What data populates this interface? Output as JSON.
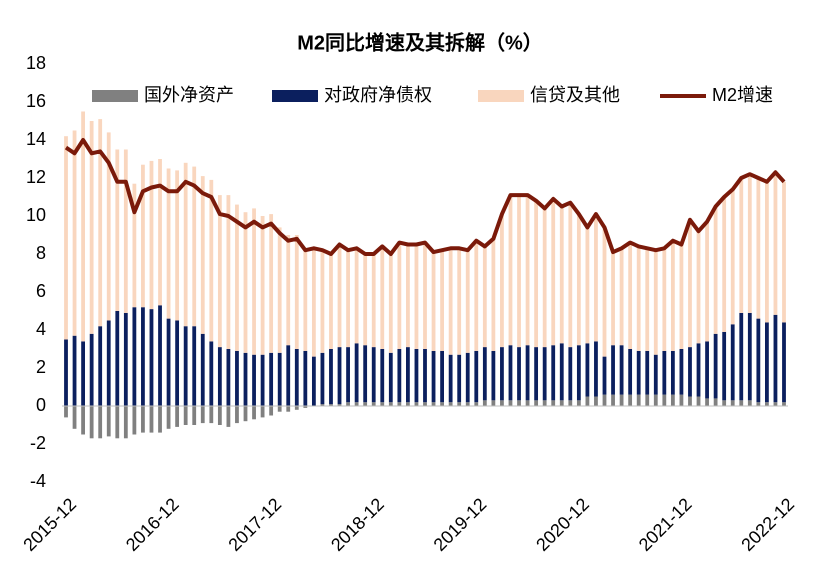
{
  "chart_data": {
    "type": "bar",
    "title": "M2同比增速及其拆解（%）",
    "categories": [
      "2015-12",
      null,
      null,
      null,
      null,
      null,
      null,
      null,
      null,
      null,
      null,
      null,
      "2016-12",
      null,
      null,
      null,
      null,
      null,
      null,
      null,
      null,
      null,
      null,
      null,
      "2017-12",
      null,
      null,
      null,
      null,
      null,
      null,
      null,
      null,
      null,
      null,
      null,
      "2018-12",
      null,
      null,
      null,
      null,
      null,
      null,
      null,
      null,
      null,
      null,
      null,
      "2019-12",
      null,
      null,
      null,
      null,
      null,
      null,
      null,
      null,
      null,
      null,
      null,
      "2020-12",
      null,
      null,
      null,
      null,
      null,
      null,
      null,
      null,
      null,
      null,
      null,
      "2021-12",
      null,
      null,
      null,
      null,
      null,
      null,
      null,
      null,
      null,
      null,
      null,
      "2022-12"
    ],
    "series": [
      {
        "name": "国外净资产",
        "color": "#808080",
        "values": [
          -0.6,
          -1.2,
          -1.5,
          -1.7,
          -1.7,
          -1.6,
          -1.7,
          -1.7,
          -1.5,
          -1.4,
          -1.4,
          -1.4,
          -1.2,
          -1.1,
          -1.0,
          -1.0,
          -0.9,
          -0.9,
          -1.0,
          -1.1,
          -0.9,
          -0.8,
          -0.7,
          -0.6,
          -0.5,
          -0.3,
          -0.3,
          -0.2,
          -0.1,
          0.0,
          0.1,
          0.1,
          0.1,
          0.2,
          0.2,
          0.2,
          0.2,
          0.2,
          0.2,
          0.2,
          0.2,
          0.2,
          0.2,
          0.2,
          0.2,
          0.2,
          0.2,
          0.2,
          0.2,
          0.3,
          0.3,
          0.3,
          0.3,
          0.3,
          0.3,
          0.3,
          0.3,
          0.3,
          0.3,
          0.3,
          0.3,
          0.5,
          0.5,
          0.6,
          0.6,
          0.6,
          0.6,
          0.6,
          0.6,
          0.6,
          0.6,
          0.6,
          0.6,
          0.5,
          0.5,
          0.4,
          0.4,
          0.3,
          0.3,
          0.3,
          0.3,
          0.2,
          0.2,
          0.2,
          0.2
        ]
      },
      {
        "name": "对政府净债权",
        "color": "#0b1f5e",
        "values": [
          3.5,
          3.7,
          3.4,
          3.8,
          4.2,
          4.5,
          5.0,
          4.9,
          5.2,
          5.2,
          5.1,
          5.3,
          4.6,
          4.5,
          4.2,
          4.2,
          3.8,
          3.4,
          3.1,
          3.0,
          2.9,
          2.8,
          2.7,
          2.7,
          2.8,
          2.8,
          3.2,
          3.0,
          2.9,
          2.6,
          2.7,
          2.9,
          3.0,
          2.9,
          3.1,
          3.0,
          2.9,
          2.8,
          2.6,
          2.8,
          2.9,
          2.8,
          2.8,
          2.7,
          2.7,
          2.5,
          2.5,
          2.6,
          2.7,
          2.8,
          2.6,
          2.8,
          2.9,
          2.8,
          2.9,
          2.8,
          2.8,
          2.9,
          3.0,
          2.8,
          2.9,
          2.8,
          2.9,
          2.0,
          2.6,
          2.6,
          2.4,
          2.3,
          2.3,
          2.1,
          2.3,
          2.3,
          2.4,
          2.6,
          2.8,
          3.0,
          3.4,
          3.6,
          4.0,
          4.6,
          4.6,
          4.4,
          4.2,
          4.6,
          4.2
        ]
      },
      {
        "name": "信贷及其他",
        "color": "#f9d6be",
        "values": [
          10.7,
          10.8,
          12.1,
          11.2,
          10.9,
          9.9,
          8.5,
          8.6,
          6.5,
          7.5,
          7.8,
          7.7,
          7.9,
          7.9,
          8.6,
          8.4,
          8.3,
          8.5,
          8.0,
          8.1,
          7.7,
          7.4,
          7.7,
          7.3,
          7.3,
          6.6,
          5.8,
          6.0,
          5.4,
          5.7,
          5.4,
          5.0,
          5.4,
          5.1,
          5.0,
          4.8,
          4.9,
          5.4,
          5.2,
          5.6,
          5.4,
          5.5,
          5.6,
          5.2,
          5.3,
          5.6,
          5.6,
          5.4,
          5.8,
          5.3,
          5.9,
          7.0,
          7.9,
          8.0,
          7.9,
          7.7,
          7.3,
          7.7,
          7.2,
          7.6,
          6.9,
          6.1,
          6.7,
          6.8,
          4.9,
          5.1,
          5.6,
          5.5,
          5.4,
          5.5,
          5.4,
          5.8,
          5.5,
          6.7,
          5.9,
          6.3,
          6.7,
          7.1,
          7.1,
          7.1,
          7.3,
          7.4,
          7.4,
          7.5,
          7.4
        ]
      },
      {
        "name": "M2增速",
        "color": "#7b1a0a",
        "type": "line",
        "values": [
          13.6,
          13.3,
          14.0,
          13.3,
          13.4,
          12.8,
          11.8,
          11.8,
          10.2,
          11.3,
          11.5,
          11.6,
          11.3,
          11.3,
          11.8,
          11.6,
          11.2,
          11.0,
          10.1,
          10.0,
          9.7,
          9.4,
          9.7,
          9.4,
          9.6,
          9.1,
          8.7,
          8.8,
          8.2,
          8.3,
          8.2,
          8.0,
          8.5,
          8.2,
          8.3,
          8.0,
          8.0,
          8.4,
          8.0,
          8.6,
          8.5,
          8.5,
          8.6,
          8.1,
          8.2,
          8.3,
          8.3,
          8.2,
          8.7,
          8.4,
          8.8,
          10.1,
          11.1,
          11.1,
          11.1,
          10.8,
          10.4,
          10.9,
          10.5,
          10.7,
          10.1,
          9.4,
          10.1,
          9.4,
          8.1,
          8.3,
          8.6,
          8.4,
          8.3,
          8.2,
          8.3,
          8.7,
          8.5,
          9.8,
          9.2,
          9.7,
          10.5,
          11.0,
          11.4,
          12.0,
          12.2,
          12.0,
          11.8,
          12.3,
          11.8
        ]
      }
    ],
    "ylim": [
      -4,
      18
    ],
    "yticks": [
      -4,
      -2,
      0,
      2,
      4,
      6,
      8,
      10,
      12,
      14,
      16,
      18
    ],
    "legend": "top"
  }
}
